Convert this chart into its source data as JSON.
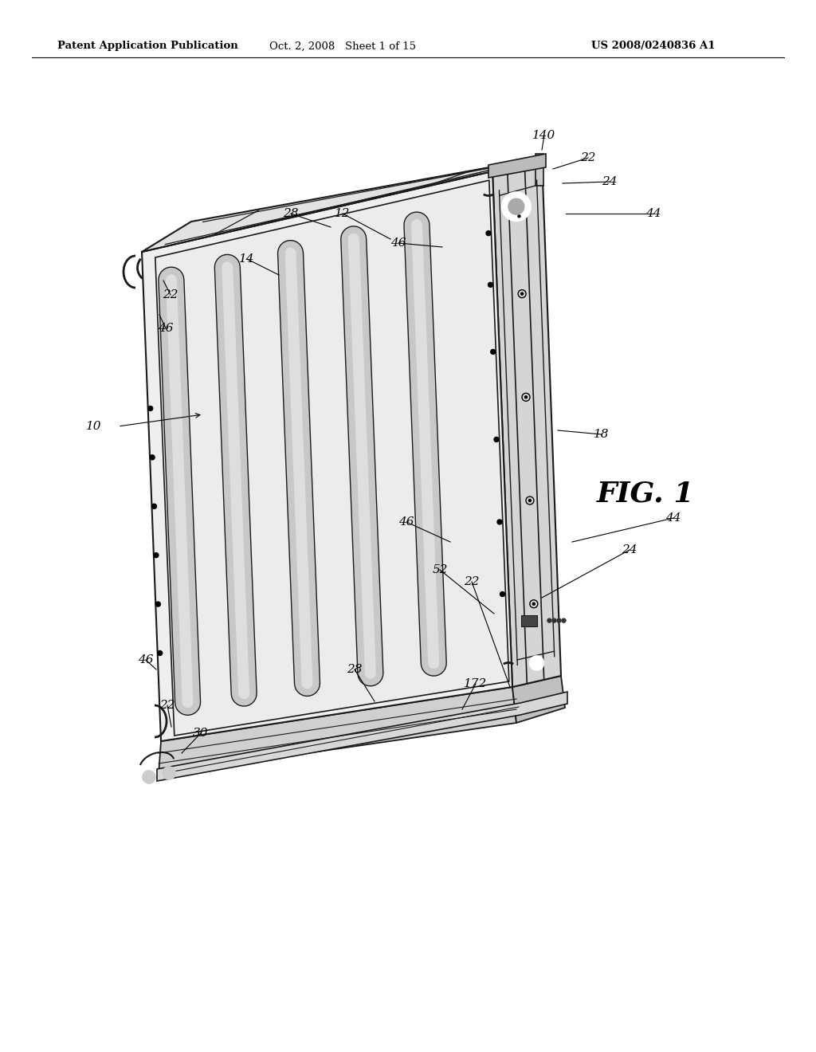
{
  "bg_color": "#ffffff",
  "header_left": "Patent Application Publication",
  "header_mid": "Oct. 2, 2008   Sheet 1 of 15",
  "header_right": "US 2008/0240836 A1",
  "fig_label": "FIG. 1",
  "line_color": "#1a1a1a",
  "face_top": "#e8e8e8",
  "face_front": "#f0f0f0",
  "face_right": "#d8d8d8",
  "face_base": "#c8c8c8"
}
